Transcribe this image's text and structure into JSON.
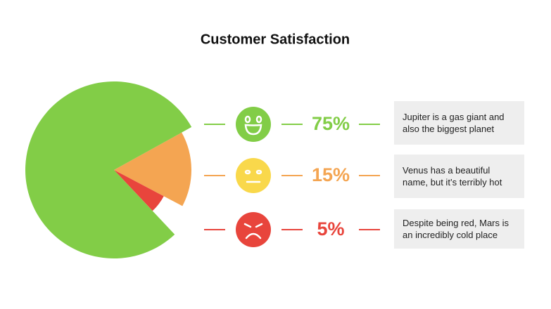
{
  "chart_data": {
    "type": "pie",
    "title": "Customer Satisfaction",
    "values": [
      75,
      15,
      5
    ],
    "value_labels": [
      "75%",
      "15%",
      "5%"
    ],
    "colors": [
      "#82cd47",
      "#f4a552",
      "#e8453c"
    ],
    "descriptions": [
      "Jupiter is a gas giant and also the biggest planet",
      "Venus has a beautiful name, but it’s terribly hot",
      "Despite being red, Mars is an incredibly cold place"
    ]
  }
}
